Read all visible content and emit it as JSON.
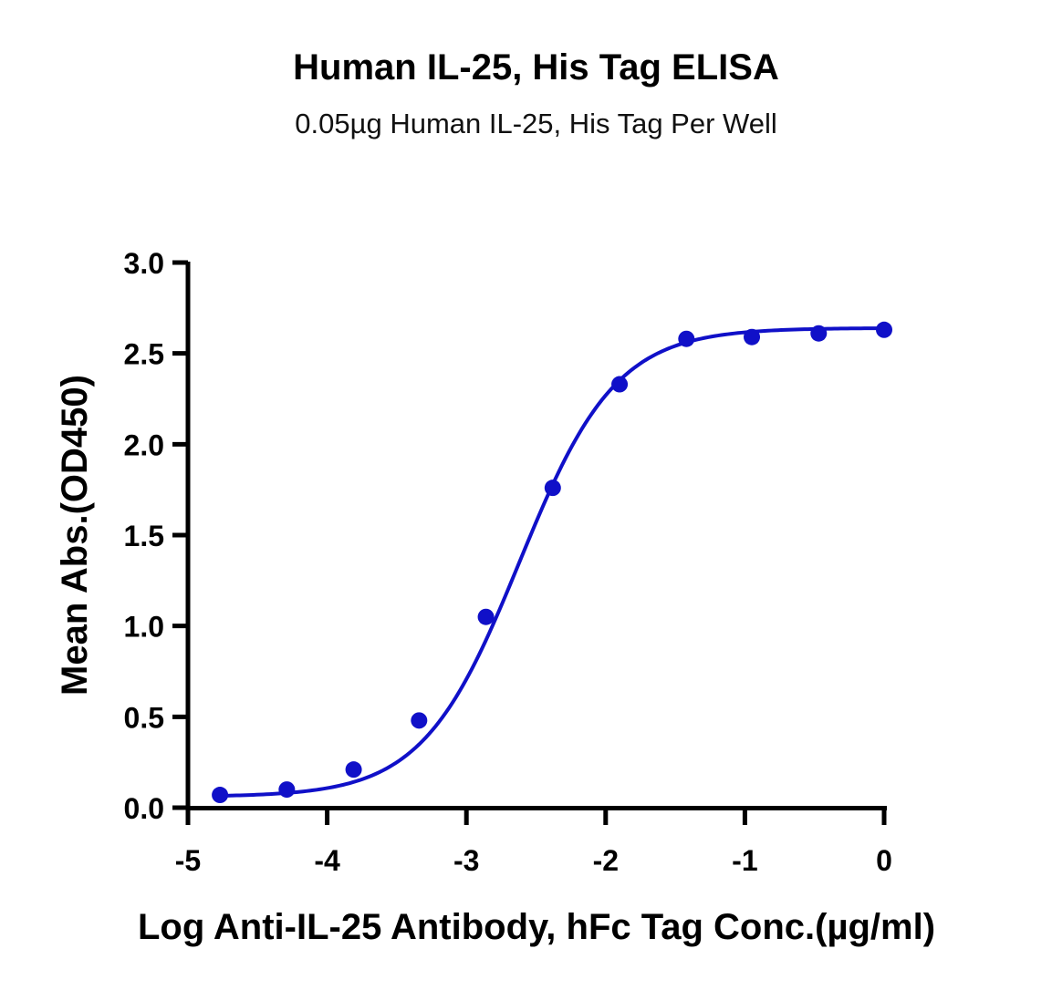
{
  "chart_data": {
    "type": "line",
    "title": "Human IL-25, His Tag ELISA",
    "subtitle": "0.05µg Human IL-25, His Tag Per Well",
    "xlabel": "Log Anti-IL-25 Antibody, hFc Tag Conc.(µg/ml)",
    "ylabel": "Mean Abs.(OD450)",
    "xlim": [
      -5,
      0
    ],
    "ylim": [
      0,
      3.0
    ],
    "xticks": [
      "-5",
      "-4",
      "-3",
      "-2",
      "-1",
      "0"
    ],
    "yticks": [
      "0.0",
      "0.5",
      "1.0",
      "1.5",
      "2.0",
      "2.5",
      "3.0"
    ],
    "grid": false,
    "color": "#1010c8",
    "series": [
      {
        "points": [
          {
            "x": -4.77,
            "y": 0.07
          },
          {
            "x": -4.29,
            "y": 0.1
          },
          {
            "x": -3.81,
            "y": 0.21
          },
          {
            "x": -3.34,
            "y": 0.48
          },
          {
            "x": -2.86,
            "y": 1.05
          },
          {
            "x": -2.38,
            "y": 1.76
          },
          {
            "x": -1.9,
            "y": 2.33
          },
          {
            "x": -1.42,
            "y": 2.58
          },
          {
            "x": -0.95,
            "y": 2.59
          },
          {
            "x": -0.47,
            "y": 2.61
          },
          {
            "x": 0.0,
            "y": 2.63
          }
        ],
        "fit": {
          "model": "4PL",
          "bottom": 0.06,
          "top": 2.64,
          "logEC50": -2.62,
          "hill": 1.25
        }
      }
    ]
  }
}
